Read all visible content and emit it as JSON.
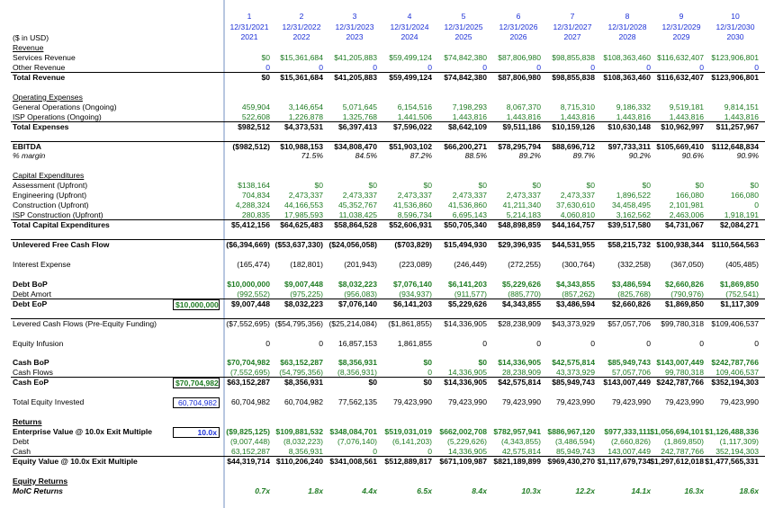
{
  "header": {
    "periods": [
      "1",
      "2",
      "3",
      "4",
      "5",
      "6",
      "7",
      "8",
      "9",
      "10"
    ],
    "dates": [
      "12/31/2021",
      "12/31/2022",
      "12/31/2023",
      "12/31/2024",
      "12/31/2025",
      "12/31/2026",
      "12/31/2027",
      "12/31/2028",
      "12/31/2029",
      "12/31/2030"
    ],
    "years": [
      "2021",
      "2022",
      "2023",
      "2024",
      "2025",
      "2026",
      "2027",
      "2028",
      "2029",
      "2030"
    ],
    "units_label": "($ in USD)"
  },
  "rows": [
    {
      "label": "Revenue",
      "u": true
    },
    {
      "label": "Services Revenue",
      "values": [
        "$0",
        "$15,361,684",
        "$41,205,883",
        "$59,499,124",
        "$74,842,380",
        "$87,806,980",
        "$98,855,838",
        "$108,363,460",
        "$116,632,407",
        "$123,906,801"
      ],
      "color": "green"
    },
    {
      "label": "Other Revenue",
      "values": [
        "0",
        "0",
        "0",
        "0",
        "0",
        "0",
        "0",
        "0",
        "0",
        "0"
      ],
      "color": "blue"
    },
    {
      "label": "Total Revenue",
      "bold": true,
      "border": true,
      "values": [
        "$0",
        "$15,361,684",
        "$41,205,883",
        "$59,499,124",
        "$74,842,380",
        "$87,806,980",
        "$98,855,838",
        "$108,363,460",
        "$116,632,407",
        "$123,906,801"
      ]
    },
    {
      "label": ""
    },
    {
      "label": "Operating Expenses",
      "u": true
    },
    {
      "label": "General Operations (Ongoing)",
      "values": [
        "459,904",
        "3,146,654",
        "5,071,645",
        "6,154,516",
        "7,198,293",
        "8,067,370",
        "8,715,310",
        "9,186,332",
        "9,519,181",
        "9,814,151"
      ],
      "color": "green"
    },
    {
      "label": "ISP Operations (Ongoing)",
      "values": [
        "522,608",
        "1,226,878",
        "1,325,768",
        "1,441,506",
        "1,443,816",
        "1,443,816",
        "1,443,816",
        "1,443,816",
        "1,443,816",
        "1,443,816"
      ],
      "color": "green"
    },
    {
      "label": "Total Expenses",
      "bold": true,
      "border": true,
      "values": [
        "$982,512",
        "$4,373,531",
        "$6,397,413",
        "$7,596,022",
        "$8,642,109",
        "$9,511,186",
        "$10,159,126",
        "$10,630,148",
        "$10,962,997",
        "$11,257,967"
      ]
    },
    {
      "label": ""
    },
    {
      "label": "EBITDA",
      "bold": true,
      "border": true,
      "values": [
        "($982,512)",
        "$10,988,153",
        "$34,808,470",
        "$51,903,102",
        "$66,200,271",
        "$78,295,794",
        "$88,696,712",
        "$97,733,311",
        "$105,669,410",
        "$112,648,834"
      ]
    },
    {
      "label": "% margin",
      "italic": true,
      "values": [
        "",
        "71.5%",
        "84.5%",
        "87.2%",
        "88.5%",
        "89.2%",
        "89.7%",
        "90.2%",
        "90.6%",
        "90.9%"
      ]
    },
    {
      "label": ""
    },
    {
      "label": "Capital Expenditures",
      "u": true
    },
    {
      "label": "Assessment (Upfront)",
      "values": [
        "$138,164",
        "$0",
        "$0",
        "$0",
        "$0",
        "$0",
        "$0",
        "$0",
        "$0",
        "$0"
      ],
      "color": "green"
    },
    {
      "label": "Engineering (Upfront)",
      "values": [
        "704,834",
        "2,473,337",
        "2,473,337",
        "2,473,337",
        "2,473,337",
        "2,473,337",
        "2,473,337",
        "1,896,522",
        "166,080",
        "166,080"
      ],
      "color": "green"
    },
    {
      "label": "Construction (Upfront)",
      "values": [
        "4,288,324",
        "44,166,553",
        "45,352,767",
        "41,536,860",
        "41,536,860",
        "41,211,340",
        "37,630,610",
        "34,458,495",
        "2,101,981",
        "0"
      ],
      "color": "green"
    },
    {
      "label": "ISP Construction (Upfront)",
      "values": [
        "280,835",
        "17,985,593",
        "11,038,425",
        "8,596,734",
        "6,695,143",
        "5,214,183",
        "4,060,810",
        "3,162,562",
        "2,463,006",
        "1,918,191"
      ],
      "color": "green"
    },
    {
      "label": "Total Capital Expenditures",
      "bold": true,
      "border": true,
      "values": [
        "$5,412,156",
        "$64,625,483",
        "$58,864,528",
        "$52,606,931",
        "$50,705,340",
        "$48,898,859",
        "$44,164,757",
        "$39,517,580",
        "$4,731,067",
        "$2,084,271"
      ]
    },
    {
      "label": ""
    },
    {
      "label": "Unlevered Free Cash Flow",
      "bold": true,
      "border": true,
      "values": [
        "($6,394,669)",
        "($53,637,330)",
        "($24,056,058)",
        "($703,829)",
        "$15,494,930",
        "$29,396,935",
        "$44,531,955",
        "$58,215,732",
        "$100,938,344",
        "$110,564,563"
      ]
    },
    {
      "label": ""
    },
    {
      "label": "Interest Expense",
      "values": [
        "(165,474)",
        "(182,801)",
        "(201,943)",
        "(223,089)",
        "(246,449)",
        "(272,255)",
        "(300,764)",
        "(332,258)",
        "(367,050)",
        "(405,485)"
      ]
    },
    {
      "label": ""
    },
    {
      "label": "Debt BoP",
      "bold": true,
      "values": [
        "$10,000,000",
        "$9,007,448",
        "$8,032,223",
        "$7,076,140",
        "$6,141,203",
        "$5,229,626",
        "$4,343,855",
        "$3,486,594",
        "$2,660,826",
        "$1,869,850"
      ],
      "color": "green"
    },
    {
      "label": "Debt Amort",
      "values": [
        "(992,552)",
        "(975,225)",
        "(956,083)",
        "(934,937)",
        "(911,577)",
        "(885,770)",
        "(857,262)",
        "(825,768)",
        "(790,976)",
        "(752,541)"
      ],
      "color": "green"
    },
    {
      "label": "Debt EoP",
      "bold": true,
      "border": true,
      "input": "$10,000,000",
      "input_color": "green",
      "values": [
        "$9,007,448",
        "$8,032,223",
        "$7,076,140",
        "$6,141,203",
        "$5,229,626",
        "$4,343,855",
        "$3,486,594",
        "$2,660,826",
        "$1,869,850",
        "$1,117,309"
      ]
    },
    {
      "label": ""
    },
    {
      "label": "Levered Cash Flows (Pre-Equity Funding)",
      "border": true,
      "values": [
        "($7,552,695)",
        "($54,795,356)",
        "($25,214,084)",
        "($1,861,855)",
        "$14,336,905",
        "$28,238,909",
        "$43,373,929",
        "$57,057,706",
        "$99,780,318",
        "$109,406,537"
      ]
    },
    {
      "label": ""
    },
    {
      "label": "Equity Infusion",
      "values": [
        "0",
        "0",
        "16,857,153",
        "1,861,855",
        "0",
        "0",
        "0",
        "0",
        "0",
        "0"
      ]
    },
    {
      "label": ""
    },
    {
      "label": "Cash BoP",
      "bold": true,
      "values": [
        "$70,704,982",
        "$63,152,287",
        "$8,356,931",
        "$0",
        "$0",
        "$14,336,905",
        "$42,575,814",
        "$85,949,743",
        "$143,007,449",
        "$242,787,766"
      ],
      "color": "green"
    },
    {
      "label": "Cash Flows",
      "values": [
        "(7,552,695)",
        "(54,795,356)",
        "(8,356,931)",
        "0",
        "14,336,905",
        "28,238,909",
        "43,373,929",
        "57,057,706",
        "99,780,318",
        "109,406,537"
      ],
      "color": "green"
    },
    {
      "label": "Cash EoP",
      "bold": true,
      "border": true,
      "input": "$70,704,982",
      "input_color": "green",
      "values": [
        "$63,152,287",
        "$8,356,931",
        "$0",
        "$0",
        "$14,336,905",
        "$42,575,814",
        "$85,949,743",
        "$143,007,449",
        "$242,787,766",
        "$352,194,303"
      ]
    },
    {
      "label": ""
    },
    {
      "label": "Total Equity Invested",
      "input": "60,704,982",
      "input_color": "blue",
      "values": [
        "60,704,982",
        "60,704,982",
        "77,562,135",
        "79,423,990",
        "79,423,990",
        "79,423,990",
        "79,423,990",
        "79,423,990",
        "79,423,990",
        "79,423,990"
      ]
    },
    {
      "label": ""
    },
    {
      "label": "Returns",
      "bold": true,
      "u": true
    },
    {
      "label": "Enterprise Value @ 10.0x Exit Multiple",
      "bold": true,
      "input": "10.0x",
      "input_color": "blue",
      "values": [
        "($9,825,125)",
        "$109,881,532",
        "$348,084,701",
        "$519,031,019",
        "$662,002,708",
        "$782,957,941",
        "$886,967,120",
        "$977,333,111",
        "$1,056,694,101",
        "$1,126,488,336"
      ],
      "color": "green"
    },
    {
      "label": "Debt",
      "values": [
        "(9,007,448)",
        "(8,032,223)",
        "(7,076,140)",
        "(6,141,203)",
        "(5,229,626)",
        "(4,343,855)",
        "(3,486,594)",
        "(2,660,826)",
        "(1,869,850)",
        "(1,117,309)"
      ],
      "color": "green"
    },
    {
      "label": "Cash",
      "values": [
        "63,152,287",
        "8,356,931",
        "0",
        "0",
        "14,336,905",
        "42,575,814",
        "85,949,743",
        "143,007,449",
        "242,787,766",
        "352,194,303"
      ],
      "color": "green"
    },
    {
      "label": "Equity Value @ 10.0x Exit Multiple",
      "bold": true,
      "border": true,
      "values": [
        "$44,319,714",
        "$110,206,240",
        "$341,008,561",
        "$512,889,817",
        "$671,109,987",
        "$821,189,899",
        "$969,430,270",
        "$1,117,679,734",
        "$1,297,612,018",
        "$1,477,565,331"
      ]
    },
    {
      "label": ""
    },
    {
      "label": "Equity Returns",
      "bold": true,
      "u": true
    },
    {
      "label": "MoIC Returns",
      "bold": true,
      "italic": true,
      "values": [
        "0.7x",
        "1.8x",
        "4.4x",
        "6.5x",
        "8.4x",
        "10.3x",
        "12.2x",
        "14.1x",
        "16.3x",
        "18.6x"
      ],
      "color": "green"
    }
  ]
}
